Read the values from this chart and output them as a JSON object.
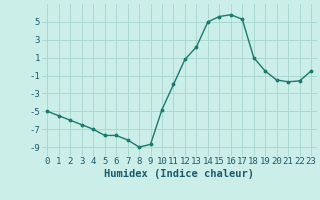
{
  "x": [
    0,
    1,
    2,
    3,
    4,
    5,
    6,
    7,
    8,
    9,
    10,
    11,
    12,
    13,
    14,
    15,
    16,
    17,
    18,
    19,
    20,
    21,
    22,
    23
  ],
  "y": [
    -5.0,
    -5.5,
    -6.0,
    -6.5,
    -7.0,
    -7.7,
    -7.7,
    -8.2,
    -9.0,
    -8.7,
    -4.8,
    -2.0,
    0.8,
    2.2,
    5.0,
    5.6,
    5.8,
    5.3,
    1.0,
    -0.5,
    -1.5,
    -1.7,
    -1.6,
    -0.5
  ],
  "title": "",
  "xlabel": "Humidex (Indice chaleur)",
  "ylabel": "",
  "ylim": [
    -10,
    7
  ],
  "xlim": [
    -0.5,
    23.5
  ],
  "yticks": [
    -9,
    -7,
    -5,
    -3,
    -1,
    1,
    3,
    5
  ],
  "xticks": [
    0,
    1,
    2,
    3,
    4,
    5,
    6,
    7,
    8,
    9,
    10,
    11,
    12,
    13,
    14,
    15,
    16,
    17,
    18,
    19,
    20,
    21,
    22,
    23
  ],
  "line_color": "#1a7a6e",
  "marker_color": "#1a7a6e",
  "bg_color": "#cceee8",
  "grid_color": "#aad8d0",
  "tick_label_color": "#1a5a6e",
  "xlabel_color": "#1a5a6e",
  "xlabel_fontsize": 7.5,
  "tick_fontsize": 6.5
}
